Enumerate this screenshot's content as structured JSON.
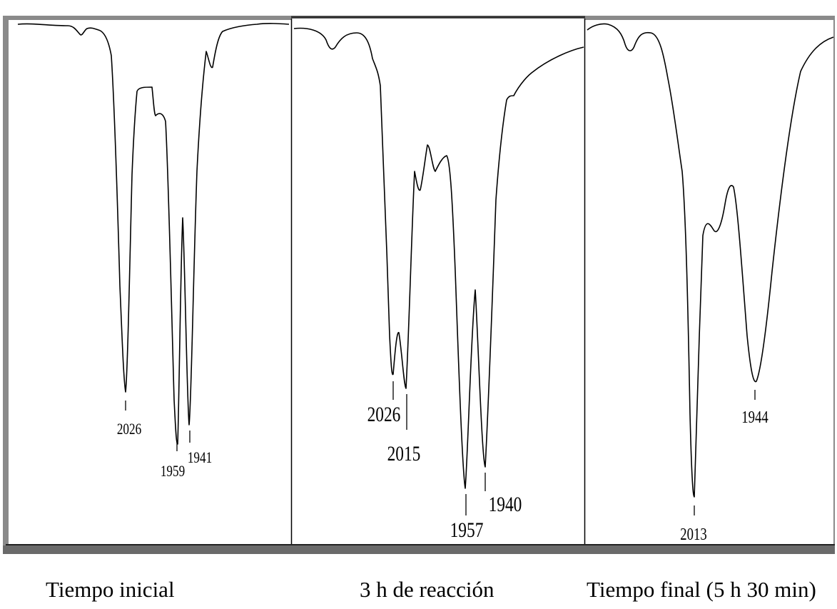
{
  "chart_data": [
    {
      "type": "line",
      "title": "Tiempo inicial",
      "xlabel": "",
      "ylabel": "",
      "peaks": [
        {
          "label": "2026"
        },
        {
          "label": "1959"
        },
        {
          "label": "1941"
        }
      ]
    },
    {
      "type": "line",
      "title": "3 h de reacción",
      "xlabel": "",
      "ylabel": "",
      "peaks": [
        {
          "label": "2026"
        },
        {
          "label": "2015"
        },
        {
          "label": "1957"
        },
        {
          "label": "1940"
        }
      ]
    },
    {
      "type": "line",
      "title": "Tiempo final (5 h 30 min)",
      "xlabel": "",
      "ylabel": "",
      "peaks": [
        {
          "label": "2013"
        },
        {
          "label": "1944"
        }
      ]
    }
  ],
  "colors": {
    "frame_outer": "#7a7a7a",
    "frame_inner": "#202020",
    "line": "#000000",
    "background": "#ffffff"
  }
}
